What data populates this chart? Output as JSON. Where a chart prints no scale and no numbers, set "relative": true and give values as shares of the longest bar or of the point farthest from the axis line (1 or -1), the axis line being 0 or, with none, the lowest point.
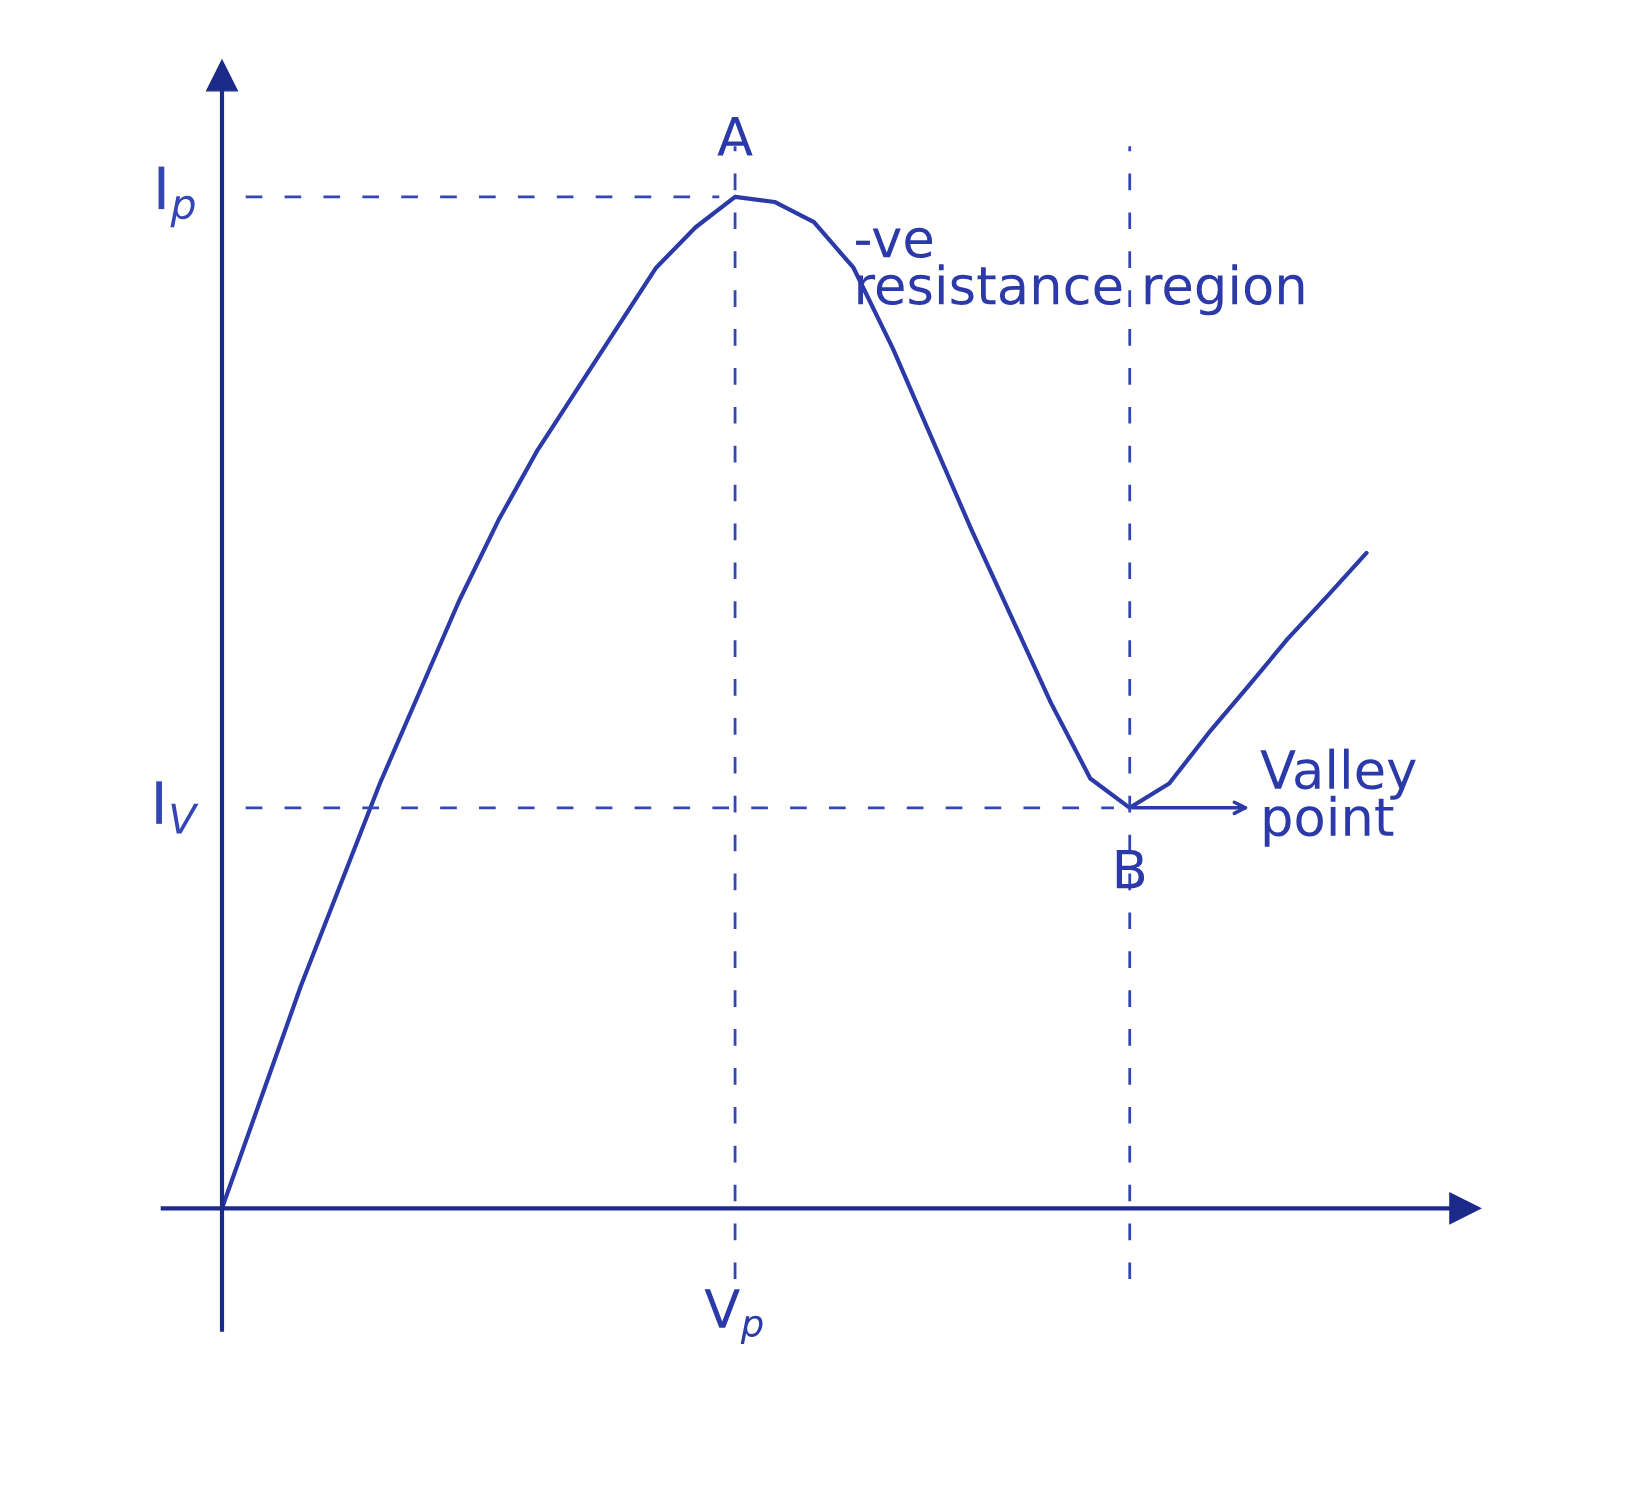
{
  "chart_data": {
    "type": "line",
    "relative": true,
    "color": "#2b3aa8",
    "line_style": "solid",
    "marker": "none",
    "legend": false,
    "categories": [
      null,
      null,
      null,
      null,
      null,
      null,
      null,
      null,
      null,
      null,
      null,
      null,
      null,
      null,
      null,
      null,
      null,
      null,
      null,
      null,
      null,
      null,
      null,
      null,
      null,
      null,
      null,
      null,
      null,
      null
    ],
    "values": [
      0,
      0.11,
      0.22,
      0.32,
      0.42,
      0.51,
      0.6,
      0.68,
      0.75,
      0.81,
      0.87,
      0.93,
      0.97,
      1.0,
      0.995,
      0.975,
      0.93,
      0.85,
      0.76,
      0.67,
      0.585,
      0.5,
      0.425,
      0.396,
      0.42,
      0.47,
      0.516,
      0.563,
      0.605,
      0.648
    ],
    "ref_lines": [
      {
        "axis": "y",
        "value": 1.0,
        "label": "I$_{p}$",
        "line_style": "dashed",
        "color": "#3445b5"
      },
      {
        "axis": "y",
        "value": 0.396,
        "label": "I$_{V}$",
        "line_style": "dashed",
        "color": "#3445b5"
      }
    ],
    "annotations": [
      "A",
      "B",
      "-ve\nresistance region",
      "Valley\npoint",
      "V$_{p}$"
    ]
  }
}
